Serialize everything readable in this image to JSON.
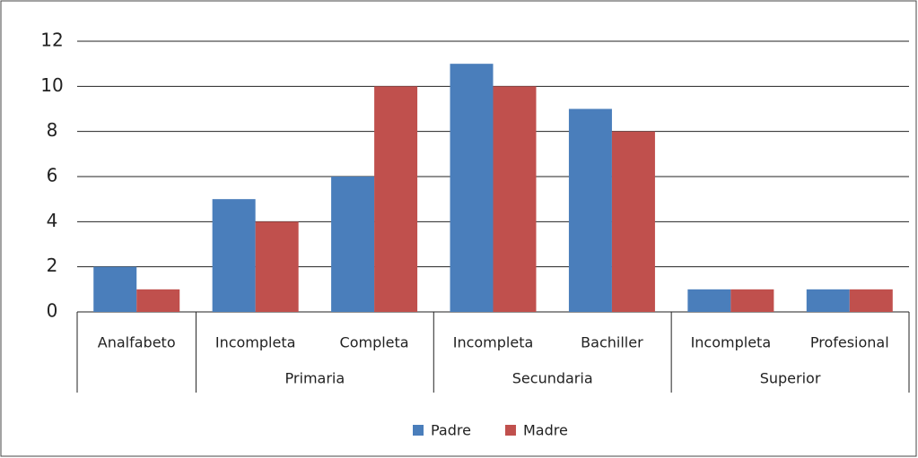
{
  "chart_data": {
    "type": "bar",
    "categories": [
      "Analfabeto",
      "Incompleta",
      "Completa",
      "Incompleta",
      "Bachiller",
      "Incompleta",
      "Profesional"
    ],
    "groups": [
      {
        "label": "Primaria",
        "start": 1,
        "end": 2
      },
      {
        "label": "Secundaria",
        "start": 3,
        "end": 4
      },
      {
        "label": "Superior",
        "start": 5,
        "end": 6
      }
    ],
    "series": [
      {
        "name": "Padre",
        "color": "#4a7ebb",
        "values": [
          2,
          5,
          6,
          11,
          9,
          1,
          1
        ]
      },
      {
        "name": "Madre",
        "color": "#c0504d",
        "values": [
          1,
          4,
          10,
          10,
          8,
          1,
          1
        ]
      }
    ],
    "ylim": [
      0,
      12
    ],
    "yticks": [
      0,
      2,
      4,
      6,
      8,
      10,
      12
    ],
    "grid": true,
    "legend": "bottom"
  }
}
